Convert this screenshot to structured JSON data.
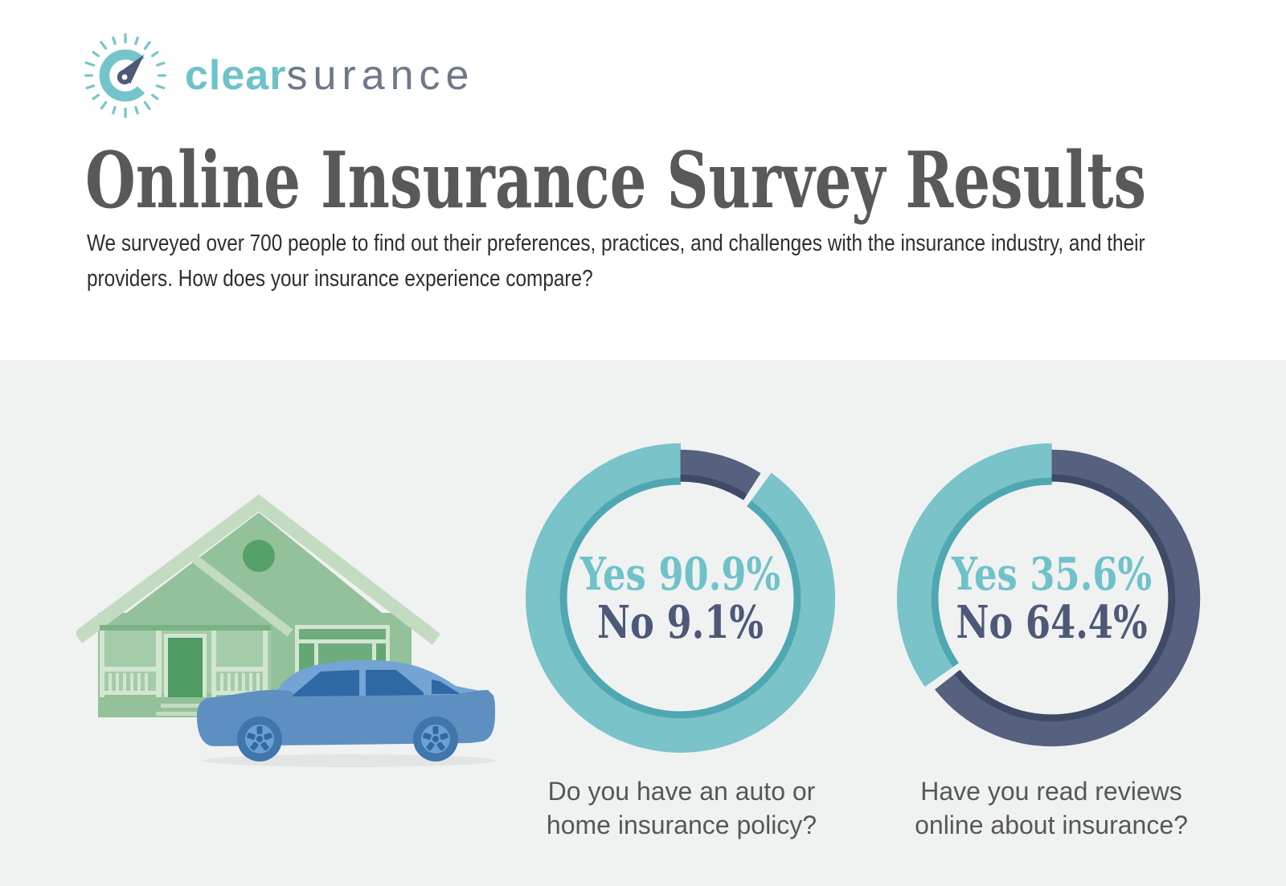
{
  "brand": {
    "logo_icon": "gauge-c-logo-icon",
    "name_bold": "clear",
    "name_light": "surance"
  },
  "header": {
    "title": "Online Insurance Survey Results",
    "subtitle": "We surveyed over 700 people to find out their preferences, practices, and challenges with the insurance industry, and their providers. How does your insurance experience compare?"
  },
  "illustration": {
    "icons": [
      "green-house-icon",
      "blue-car-icon"
    ]
  },
  "colors": {
    "teal": "#79c3c9",
    "teal_dark_rim": "#4fa7b2",
    "navy": "#56617f",
    "navy_dark_rim": "#3e4a66",
    "teal_text": "#6fc2ca",
    "navy_text": "#4c5977",
    "title_gray": "#58595b",
    "caption_gray": "#565759",
    "section_background": "#f0f1f1",
    "house_green": "#93c19a",
    "car_blue": "#5d90c1"
  },
  "chart_data": [
    {
      "type": "pie",
      "question": "Do you have an auto or home insurance policy?",
      "labels": [
        "Yes",
        "No"
      ],
      "values": [
        90.9,
        9.1
      ],
      "unit": "%",
      "center_lines": [
        "Yes 90.9%",
        "No 9.1%"
      ],
      "colors": {
        "yes": "#79c3c9",
        "no": "#56617f"
      },
      "legend_position": "center"
    },
    {
      "type": "pie",
      "question": "Have you read reviews online about insurance?",
      "labels": [
        "Yes",
        "No"
      ],
      "values": [
        35.6,
        64.4
      ],
      "unit": "%",
      "center_lines": [
        "Yes 35.6%",
        "No 64.4%"
      ],
      "colors": {
        "yes": "#79c3c9",
        "no": "#56617f"
      },
      "legend_position": "center"
    }
  ]
}
